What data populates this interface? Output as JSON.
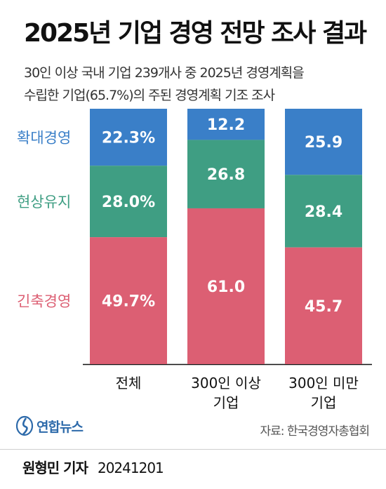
{
  "title": "2025년 기업 경영 전망 조사 결과",
  "subtitle_line1": "30인 이상 국내 기업 239개사 중 2025년 경영계획을",
  "subtitle_line2": "수립한 기업(65.7%)의 주된 경영계획 기조 조사",
  "colors": {
    "확대경영": "#3a7fc8",
    "현상유지": "#3f9e83",
    "긴축경영": "#dc5f73"
  },
  "chart_data": {
    "type": "bar",
    "stacked": true,
    "percent_stacked": true,
    "categories": [
      "전체",
      "300인 이상\n기업",
      "300인 미만\n기업"
    ],
    "series": [
      {
        "name": "확대경영",
        "values": [
          22.3,
          12.2,
          25.9
        ],
        "labels": [
          "22.3%",
          "12.2",
          "25.9"
        ]
      },
      {
        "name": "현상유지",
        "values": [
          28.0,
          26.8,
          28.4
        ],
        "labels": [
          "28.0%",
          "26.8",
          "28.4"
        ]
      },
      {
        "name": "긴축경영",
        "values": [
          49.7,
          61.0,
          45.7
        ],
        "labels": [
          "49.7%",
          "61.0",
          "45.7"
        ]
      }
    ],
    "legend_position": "left"
  },
  "logo_text": "연합뉴스",
  "source": "자료: 한국경영자총협회",
  "byline_name": "원형민 기자",
  "byline_date": "20241201"
}
